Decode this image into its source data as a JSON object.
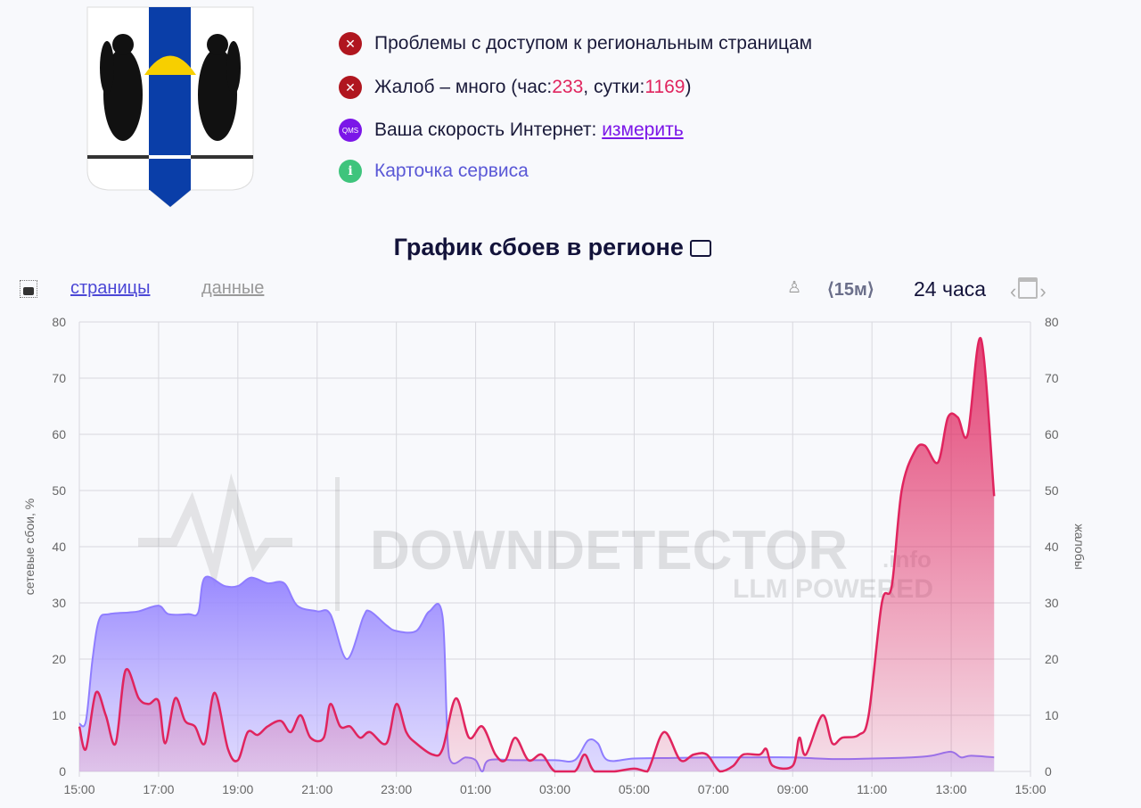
{
  "header": {
    "coat_of_arms": "Novosibirsk region coat of arms",
    "statuses": [
      {
        "icon": "error-x-icon",
        "text": "Проблемы с доступом к региональным страницам"
      },
      {
        "icon": "error-x-icon",
        "prefix": "Жалоб – много (час: ",
        "hour_count": "233",
        "mid": ", сутки: ",
        "day_count": "1169",
        "suffix": ")"
      },
      {
        "icon": "qms-icon",
        "icon_text": "QMS",
        "text": "Ваша скорость Интернет: ",
        "link": "измерить"
      },
      {
        "icon": "info-icon",
        "icon_text": "i",
        "link": "Карточка сервиса"
      }
    ]
  },
  "chart_title": "График сбоев в регионе",
  "toolbar": {
    "tab_pages": "страницы",
    "tab_data": "данные",
    "interval": "⟨15м⟩",
    "range": "24 часа"
  },
  "watermark": {
    "brand": "DOWNDETECTOR",
    "suffix": ".info",
    "tagline": "LLM POWERED"
  },
  "colors": {
    "network": "#8f7dff",
    "complaints": "#e0245e"
  },
  "chart_data": {
    "type": "area",
    "xlabel": "",
    "ylabel_left": "сетевые сбои, %",
    "ylabel_right": "жалобы",
    "ylim_left": [
      0,
      80
    ],
    "ylim_right": [
      0,
      80
    ],
    "yticks": [
      0,
      10,
      20,
      30,
      40,
      50,
      60,
      70,
      80
    ],
    "xticks": [
      "15:00",
      "17:00",
      "19:00",
      "21:00",
      "23:00",
      "01:00",
      "03:00",
      "05:00",
      "07:00",
      "09:00",
      "11:00",
      "13:00",
      "15:00"
    ],
    "grid": true,
    "series": [
      {
        "name": "сетевые сбои, %",
        "axis": "left",
        "points": [
          [
            "15:00",
            8.5
          ],
          [
            "15:10",
            9
          ],
          [
            "15:20",
            20
          ],
          [
            "15:30",
            27
          ],
          [
            "15:45",
            28
          ],
          [
            "16:15",
            28.3
          ],
          [
            "16:30",
            28.5
          ],
          [
            "17:00",
            29.5
          ],
          [
            "17:15",
            28
          ],
          [
            "17:45",
            28
          ],
          [
            "18:00",
            28.3
          ],
          [
            "18:10",
            34.5
          ],
          [
            "18:40",
            33
          ],
          [
            "19:00",
            33
          ],
          [
            "19:20",
            34.5
          ],
          [
            "19:45",
            33.5
          ],
          [
            "20:10",
            33.5
          ],
          [
            "20:30",
            29.5
          ],
          [
            "21:00",
            28.5
          ],
          [
            "21:20",
            28
          ],
          [
            "21:45",
            20
          ],
          [
            "22:10",
            27.5
          ],
          [
            "22:20",
            28.5
          ],
          [
            "22:45",
            26
          ],
          [
            "23:00",
            25
          ],
          [
            "23:30",
            25
          ],
          [
            "23:50",
            28.5
          ],
          [
            "00:10",
            27.5
          ],
          [
            "00:20",
            2.5
          ],
          [
            "00:45",
            2.5
          ],
          [
            "01:00",
            2
          ],
          [
            "01:10",
            0
          ],
          [
            "01:20",
            2
          ],
          [
            "02:00",
            2
          ],
          [
            "03:00",
            2
          ],
          [
            "03:30",
            2
          ],
          [
            "03:50",
            5.5
          ],
          [
            "04:05",
            5
          ],
          [
            "04:20",
            2
          ],
          [
            "05:00",
            2.3
          ],
          [
            "06:00",
            2.4
          ],
          [
            "07:00",
            2.5
          ],
          [
            "08:00",
            2.5
          ],
          [
            "09:00",
            2.5
          ],
          [
            "10:00",
            2.2
          ],
          [
            "11:00",
            2.3
          ],
          [
            "12:00",
            2.5
          ],
          [
            "12:30",
            2.8
          ],
          [
            "13:00",
            3.5
          ],
          [
            "13:15",
            2.5
          ],
          [
            "13:30",
            2.8
          ],
          [
            "14:05",
            2.5
          ]
        ]
      },
      {
        "name": "жалобы",
        "axis": "right",
        "points": [
          [
            "15:00",
            8
          ],
          [
            "15:10",
            4
          ],
          [
            "15:25",
            14
          ],
          [
            "15:40",
            10
          ],
          [
            "15:55",
            5
          ],
          [
            "16:10",
            18
          ],
          [
            "16:30",
            13
          ],
          [
            "16:45",
            12
          ],
          [
            "17:00",
            12.5
          ],
          [
            "17:10",
            5
          ],
          [
            "17:25",
            13
          ],
          [
            "17:40",
            9
          ],
          [
            "17:55",
            8
          ],
          [
            "18:10",
            5
          ],
          [
            "18:25",
            14
          ],
          [
            "18:45",
            4
          ],
          [
            "19:00",
            2
          ],
          [
            "19:15",
            7
          ],
          [
            "19:30",
            6.5
          ],
          [
            "19:45",
            8
          ],
          [
            "20:05",
            9
          ],
          [
            "20:20",
            7
          ],
          [
            "20:35",
            10
          ],
          [
            "20:50",
            6
          ],
          [
            "21:10",
            6
          ],
          [
            "21:20",
            12
          ],
          [
            "21:35",
            8
          ],
          [
            "21:50",
            8
          ],
          [
            "22:05",
            6
          ],
          [
            "22:20",
            7
          ],
          [
            "22:45",
            5
          ],
          [
            "23:00",
            12
          ],
          [
            "23:15",
            7
          ],
          [
            "23:30",
            5
          ],
          [
            "23:55",
            3
          ],
          [
            "00:10",
            4
          ],
          [
            "00:30",
            13
          ],
          [
            "00:50",
            6
          ],
          [
            "01:10",
            8
          ],
          [
            "01:30",
            3
          ],
          [
            "01:45",
            2
          ],
          [
            "02:00",
            6
          ],
          [
            "02:20",
            2
          ],
          [
            "02:40",
            3
          ],
          [
            "03:00",
            0
          ],
          [
            "03:30",
            0
          ],
          [
            "03:45",
            3
          ],
          [
            "04:00",
            0
          ],
          [
            "04:30",
            0
          ],
          [
            "05:00",
            0.5
          ],
          [
            "05:20",
            0
          ],
          [
            "05:45",
            7
          ],
          [
            "06:10",
            2
          ],
          [
            "06:30",
            3
          ],
          [
            "06:50",
            3
          ],
          [
            "07:10",
            0
          ],
          [
            "07:30",
            1
          ],
          [
            "07:45",
            3
          ],
          [
            "08:10",
            3
          ],
          [
            "08:20",
            4
          ],
          [
            "08:30",
            1
          ],
          [
            "09:00",
            1
          ],
          [
            "09:10",
            6
          ],
          [
            "09:20",
            3
          ],
          [
            "09:45",
            10
          ],
          [
            "10:00",
            5
          ],
          [
            "10:15",
            6
          ],
          [
            "10:40",
            6.5
          ],
          [
            "10:55",
            10
          ],
          [
            "11:15",
            30
          ],
          [
            "11:30",
            33
          ],
          [
            "11:45",
            50
          ],
          [
            "12:05",
            57
          ],
          [
            "12:20",
            58
          ],
          [
            "12:40",
            55
          ],
          [
            "12:55",
            63
          ],
          [
            "13:10",
            63
          ],
          [
            "13:25",
            60
          ],
          [
            "13:45",
            77
          ],
          [
            "14:05",
            49
          ]
        ]
      }
    ]
  }
}
